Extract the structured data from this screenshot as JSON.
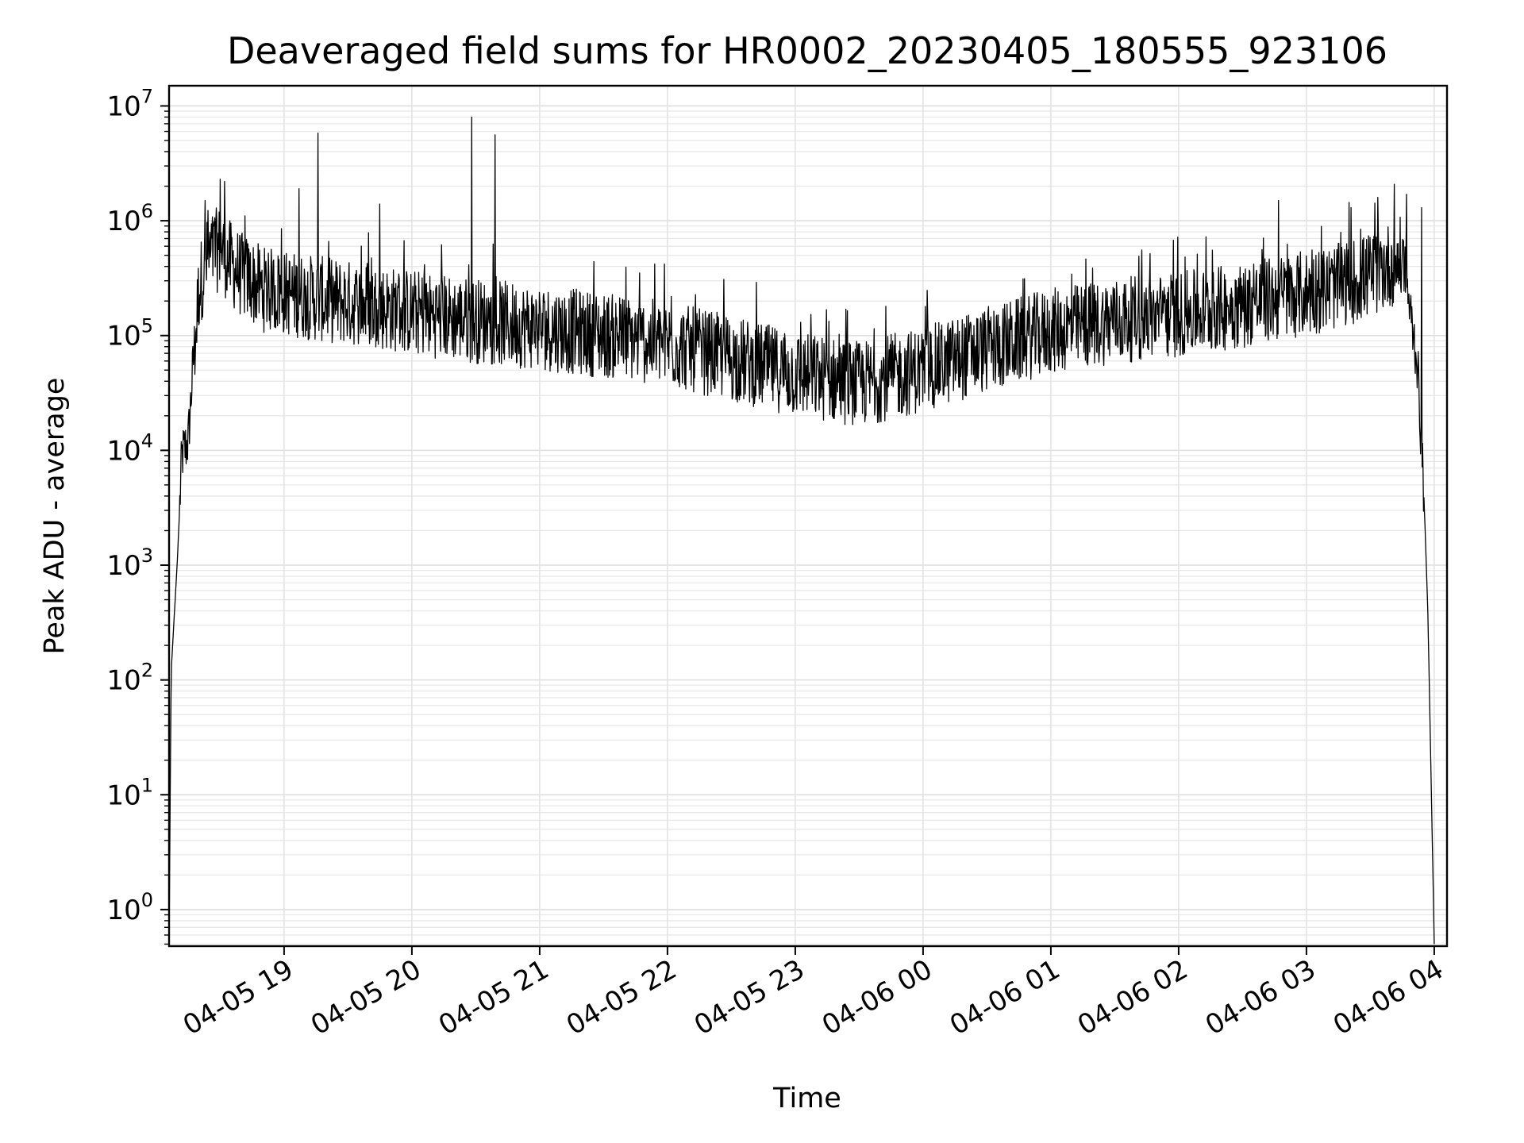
{
  "chart_data": {
    "type": "line",
    "title": "Deaveraged field sums for HR0002_20230405_180555_923106",
    "xlabel": "Time",
    "ylabel": "Peak ADU - average",
    "yscale": "log",
    "ylim": [
      0.48,
      15000000
    ],
    "xlim": [
      "2023-04-05 18:06",
      "2023-04-06 04:06"
    ],
    "x_tick_labels": [
      "04-05 19",
      "04-05 20",
      "04-05 21",
      "04-05 22",
      "04-05 23",
      "04-06 00",
      "04-06 01",
      "04-06 02",
      "04-06 03",
      "04-06 04"
    ],
    "y_tick_labels": [
      {
        "base": "10",
        "exp": "0"
      },
      {
        "base": "10",
        "exp": "1"
      },
      {
        "base": "10",
        "exp": "2"
      },
      {
        "base": "10",
        "exp": "3"
      },
      {
        "base": "10",
        "exp": "4"
      },
      {
        "base": "10",
        "exp": "5"
      },
      {
        "base": "10",
        "exp": "6"
      },
      {
        "base": "10",
        "exp": "7"
      }
    ],
    "grid": true,
    "line_color": "#000000",
    "series": [
      {
        "x": [
          "2023-04-05 18:06",
          "2023-04-05 18:07",
          "2023-04-05 18:10",
          "2023-04-05 18:12",
          "2023-04-05 18:15",
          "2023-04-05 18:18",
          "2023-04-05 18:20",
          "2023-04-05 18:23",
          "2023-04-05 18:26",
          "2023-04-05 18:30",
          "2023-04-05 18:35",
          "2023-04-05 18:40",
          "2023-04-05 18:45",
          "2023-04-05 18:50",
          "2023-04-05 19:00",
          "2023-04-05 19:15",
          "2023-04-05 19:30",
          "2023-04-05 19:45",
          "2023-04-05 20:00",
          "2023-04-05 20:30",
          "2023-04-05 21:00",
          "2023-04-05 21:30",
          "2023-04-05 22:00",
          "2023-04-05 22:30",
          "2023-04-05 23:00",
          "2023-04-05 23:30",
          "2023-04-06 00:00",
          "2023-04-06 00:30",
          "2023-04-06 01:00",
          "2023-04-06 01:30",
          "2023-04-06 02:00",
          "2023-04-06 02:30",
          "2023-04-06 03:00",
          "2023-04-06 03:15",
          "2023-04-06 03:30",
          "2023-04-06 03:40",
          "2023-04-06 03:45",
          "2023-04-06 03:48",
          "2023-04-06 03:52",
          "2023-04-06 03:55",
          "2023-04-06 03:57",
          "2023-04-06 03:59",
          "2023-04-06 04:00"
        ],
        "y": [
          0.5,
          120,
          1200,
          9000,
          12000,
          90000,
          300000,
          500000,
          600000,
          700000,
          500000,
          400000,
          350000,
          300000,
          280000,
          250000,
          230000,
          210000,
          190000,
          160000,
          140000,
          120000,
          100000,
          75000,
          55000,
          45000,
          60000,
          90000,
          130000,
          160000,
          180000,
          220000,
          280000,
          320000,
          400000,
          500000,
          550000,
          200000,
          60000,
          5000,
          400,
          5,
          0.5
        ]
      }
    ],
    "spikes": [
      {
        "x": "2023-04-05 18:23",
        "y": 1500000
      },
      {
        "x": "2023-04-05 18:30",
        "y": 2300000
      },
      {
        "x": "2023-04-05 18:32",
        "y": 2200000
      },
      {
        "x": "2023-04-05 19:07",
        "y": 1900000
      },
      {
        "x": "2023-04-05 19:16",
        "y": 5800000
      },
      {
        "x": "2023-04-05 19:45",
        "y": 1400000
      },
      {
        "x": "2023-04-05 20:28",
        "y": 8000000
      },
      {
        "x": "2023-04-05 20:39",
        "y": 5600000
      },
      {
        "x": "2023-04-06 02:47",
        "y": 1500000
      },
      {
        "x": "2023-04-06 03:21",
        "y": 1300000
      },
      {
        "x": "2023-04-06 03:47",
        "y": 1700000
      },
      {
        "x": "2023-04-06 03:54",
        "y": 1300000
      }
    ]
  }
}
